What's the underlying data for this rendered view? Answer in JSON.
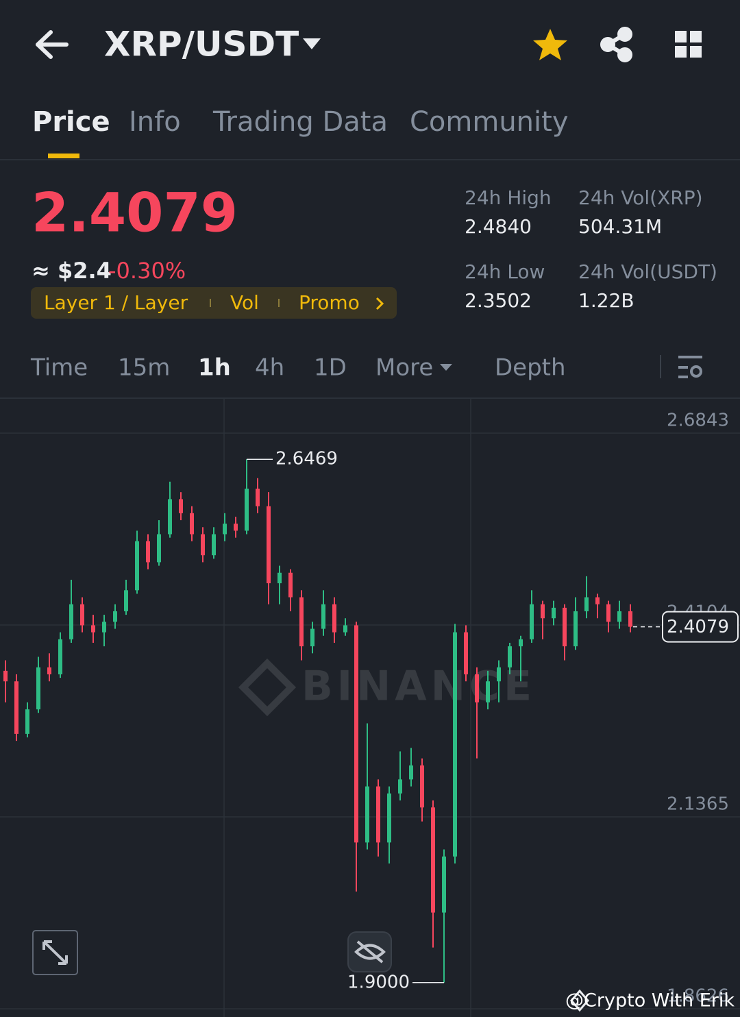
{
  "header": {
    "title": "XRP/USDT"
  },
  "tabs": [
    "Price",
    "Info",
    "Trading Data",
    "Community"
  ],
  "price": {
    "last": "2.4079",
    "fiat": "≈ $2.4",
    "change": "-0.30%"
  },
  "tags": [
    "Layer 1 / Layer",
    "Vol",
    "Promo"
  ],
  "stats": [
    {
      "label": "24h High",
      "value": "2.4840"
    },
    {
      "label": "24h Vol(XRP)",
      "value": "504.31M"
    },
    {
      "label": "24h Low",
      "value": "2.3502"
    },
    {
      "label": "24h Vol(USDT)",
      "value": "1.22B"
    }
  ],
  "intervals": [
    "Time",
    "15m",
    "1h",
    "4h",
    "1D",
    "More",
    "Depth"
  ],
  "chart_data": {
    "type": "candlestick",
    "candles": [
      [
        2.345,
        2.36,
        2.3,
        2.33
      ],
      [
        2.33,
        2.34,
        2.245,
        2.255
      ],
      [
        2.255,
        2.3,
        2.25,
        2.29
      ],
      [
        2.29,
        2.365,
        2.285,
        2.35
      ],
      [
        2.35,
        2.37,
        2.33,
        2.34
      ],
      [
        2.34,
        2.4,
        2.335,
        2.39
      ],
      [
        2.39,
        2.475,
        2.385,
        2.44
      ],
      [
        2.44,
        2.45,
        2.4,
        2.41
      ],
      [
        2.41,
        2.425,
        2.385,
        2.4
      ],
      [
        2.4,
        2.425,
        2.38,
        2.415
      ],
      [
        2.415,
        2.44,
        2.405,
        2.43
      ],
      [
        2.43,
        2.475,
        2.425,
        2.46
      ],
      [
        2.46,
        2.545,
        2.455,
        2.53
      ],
      [
        2.53,
        2.54,
        2.49,
        2.5
      ],
      [
        2.5,
        2.56,
        2.495,
        2.54
      ],
      [
        2.54,
        2.615,
        2.535,
        2.59
      ],
      [
        2.59,
        2.6,
        2.56,
        2.57
      ],
      [
        2.57,
        2.58,
        2.53,
        2.54
      ],
      [
        2.54,
        2.55,
        2.5,
        2.51
      ],
      [
        2.51,
        2.55,
        2.505,
        2.54
      ],
      [
        2.54,
        2.57,
        2.53,
        2.555
      ],
      [
        2.555,
        2.565,
        2.535,
        2.545
      ],
      [
        2.545,
        2.6469,
        2.54,
        2.605
      ],
      [
        2.605,
        2.62,
        2.57,
        2.58
      ],
      [
        2.58,
        2.6,
        2.44,
        2.47
      ],
      [
        2.47,
        2.495,
        2.44,
        2.485
      ],
      [
        2.485,
        2.49,
        2.43,
        2.45
      ],
      [
        2.45,
        2.46,
        2.36,
        2.38
      ],
      [
        2.38,
        2.415,
        2.37,
        2.405
      ],
      [
        2.405,
        2.46,
        2.395,
        2.44
      ],
      [
        2.44,
        2.45,
        2.385,
        2.4
      ],
      [
        2.4,
        2.42,
        2.395,
        2.41
      ],
      [
        2.41,
        2.415,
        2.03,
        2.1
      ],
      [
        2.1,
        2.27,
        2.09,
        2.18
      ],
      [
        2.18,
        2.19,
        2.08,
        2.1
      ],
      [
        2.1,
        2.18,
        2.07,
        2.17
      ],
      [
        2.17,
        2.23,
        2.16,
        2.19
      ],
      [
        2.19,
        2.235,
        2.18,
        2.21
      ],
      [
        2.21,
        2.22,
        2.13,
        2.15
      ],
      [
        2.15,
        2.16,
        1.95,
        2.0
      ],
      [
        2.0,
        2.09,
        1.9,
        2.08
      ],
      [
        2.08,
        2.412,
        2.07,
        2.4
      ],
      [
        2.4,
        2.41,
        2.33,
        2.34
      ],
      [
        2.34,
        2.35,
        2.22,
        2.3
      ],
      [
        2.3,
        2.345,
        2.29,
        2.33
      ],
      [
        2.33,
        2.36,
        2.3,
        2.35
      ],
      [
        2.35,
        2.385,
        2.34,
        2.38
      ],
      [
        2.38,
        2.395,
        2.33,
        2.39
      ],
      [
        2.39,
        2.46,
        2.385,
        2.44
      ],
      [
        2.44,
        2.445,
        2.39,
        2.42
      ],
      [
        2.42,
        2.445,
        2.41,
        2.435
      ],
      [
        2.435,
        2.44,
        2.36,
        2.38
      ],
      [
        2.38,
        2.45,
        2.375,
        2.43
      ],
      [
        2.43,
        2.48,
        2.42,
        2.45
      ],
      [
        2.45,
        2.455,
        2.42,
        2.44
      ],
      [
        2.44,
        2.445,
        2.4,
        2.415
      ],
      [
        2.415,
        2.445,
        2.405,
        2.43
      ],
      [
        2.43,
        2.44,
        2.4,
        2.4079
      ]
    ],
    "up_color": "#2ebd85",
    "down_color": "#f6465d",
    "ylim": [
      1.8509,
      2.7332
    ],
    "yticks": [
      2.6843,
      2.4104,
      2.1365,
      1.8626
    ],
    "high_annotation": 2.6469,
    "low_annotation": {
      "value": 1.9,
      "label": "1.9000"
    },
    "last_price": 2.4079,
    "grid": true
  },
  "watermark": "@Crypto With Erik"
}
